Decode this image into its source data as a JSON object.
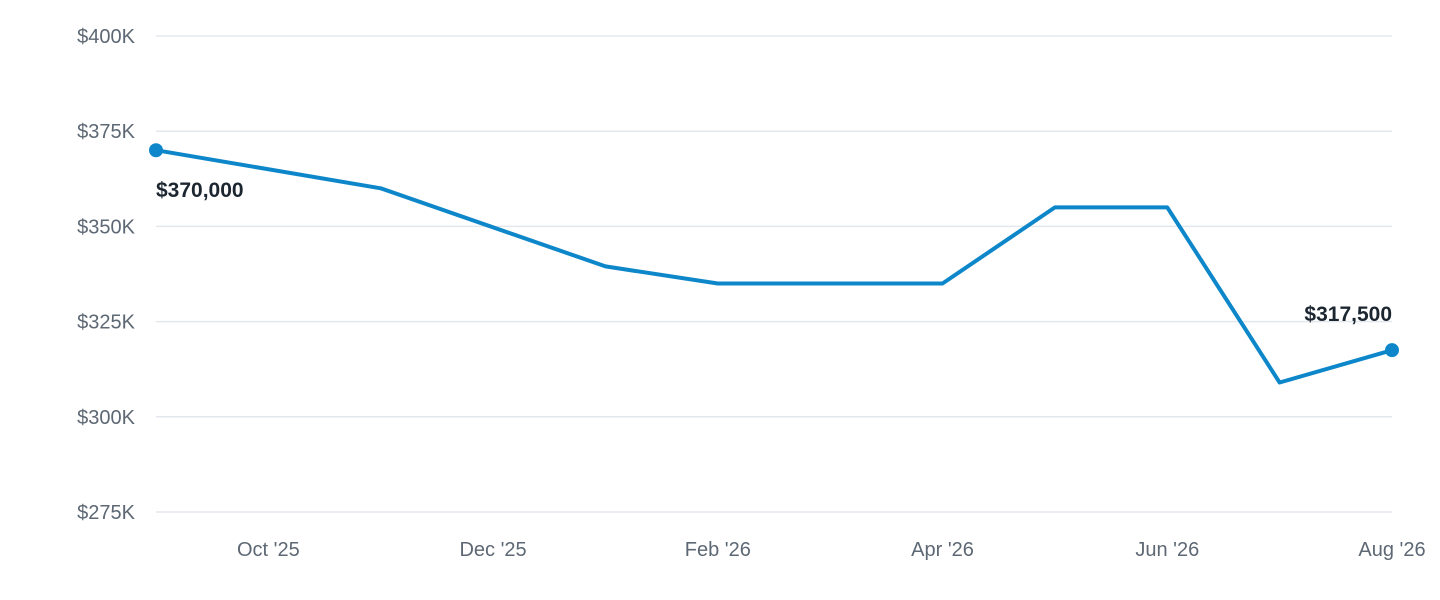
{
  "chart_data": {
    "type": "line",
    "title": "",
    "xlabel": "",
    "ylabel": "",
    "ylim": [
      275000,
      400000
    ],
    "y_ticks": [
      {
        "value": 400000,
        "label": "$400K"
      },
      {
        "value": 375000,
        "label": "$375K"
      },
      {
        "value": 350000,
        "label": "$350K"
      },
      {
        "value": 325000,
        "label": "$325K"
      },
      {
        "value": 300000,
        "label": "$300K"
      },
      {
        "value": 275000,
        "label": "$275K"
      }
    ],
    "x_ticks": [
      {
        "x": "2025-10",
        "label": "Oct '25"
      },
      {
        "x": "2025-12",
        "label": "Dec '25"
      },
      {
        "x": "2026-02",
        "label": "Feb '26"
      },
      {
        "x": "2026-04",
        "label": "Apr '26"
      },
      {
        "x": "2026-06",
        "label": "Jun '26"
      },
      {
        "x": "2026-08",
        "label": "Aug '26"
      }
    ],
    "grid": true,
    "legend": "none",
    "colors": {
      "series": "#0d87c9",
      "grid": "#e3e7ee",
      "tick_text": "#5d6874",
      "label_text": "#1c2630"
    },
    "series": [
      {
        "points": [
          {
            "x": "2025-09",
            "y": 370000
          },
          {
            "x": "2025-11",
            "y": 360000
          },
          {
            "x": "2026-01",
            "y": 339500
          },
          {
            "x": "2026-02",
            "y": 335000
          },
          {
            "x": "2026-04",
            "y": 335000
          },
          {
            "x": "2026-05",
            "y": 355000
          },
          {
            "x": "2026-06",
            "y": 355000
          },
          {
            "x": "2026-07",
            "y": 309000
          },
          {
            "x": "2026-08",
            "y": 317500
          }
        ]
      }
    ],
    "data_labels": [
      {
        "x": "2025-09",
        "y": 370000,
        "text": "$370,000",
        "placement": "below-right"
      },
      {
        "x": "2026-08",
        "y": 317500,
        "text": "$317,500",
        "placement": "above-left"
      }
    ]
  }
}
